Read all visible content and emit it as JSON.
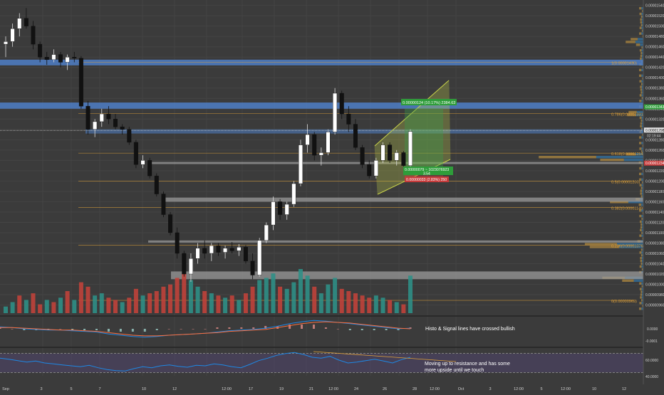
{
  "colors": {
    "background": "#3b3b3b",
    "candle_up": "#ffffff",
    "candle_down": "#111111",
    "volume_up": "#2f8f86",
    "volume_down": "#c0433b",
    "zone_blue": "#4f7fc7",
    "zone_gray": "#9a9a9a",
    "fib": "#e0a23a",
    "channel": "#c9d44a",
    "macd": "#1e88e5",
    "signal": "#ff6d3a",
    "rsi": "#1e88e5",
    "rsi_band": "#5b4a8a",
    "profile_up": "#d9a441",
    "profile_down": "#2f86c9"
  },
  "chart_data": [
    {
      "type": "candlestick",
      "title": "",
      "ylim": [
        9.47e-06,
        1.545e-05
      ],
      "price_axis": {
        "ticks": [
          "0.00001540",
          "0.00001520",
          "0.00001500",
          "0.00001480",
          "0.00001460",
          "0.00001440",
          "0.00001420",
          "0.00001400",
          "0.00001380",
          "0.00001360",
          "0.00001340",
          "0.00001320",
          "0.00001300",
          "0.00001280",
          "0.00001260",
          "0.00001240",
          "0.00001220",
          "0.00001200",
          "0.00001180",
          "0.00001160",
          "0.00001140",
          "0.00001120",
          "0.00001100",
          "0.00001080",
          "0.00001060",
          "0.00001040",
          "0.00001020",
          "0.00001000",
          "0.00000980",
          "0.00000960"
        ],
        "last_price": "0.00001298",
        "countdown": "02:19:44",
        "green_tag": "0.00001343",
        "red_tag": "0.00001234"
      },
      "time_axis": [
        "Sep",
        "3",
        "5",
        "7",
        "10",
        "12",
        "12:00",
        "17",
        "19",
        "21",
        "12:00",
        "24",
        "26",
        "28",
        "12:00",
        "Oct",
        "3",
        "12:00",
        "5",
        "12:00",
        "10",
        "12"
      ],
      "candles": [
        {
          "o": 1.465e-05,
          "h": 1.48e-05,
          "l": 1.44e-05,
          "c": 1.47e-05
        },
        {
          "o": 1.47e-05,
          "h": 1.505e-05,
          "l": 1.46e-05,
          "c": 1.495e-05
        },
        {
          "o": 1.495e-05,
          "h": 1.525e-05,
          "l": 1.48e-05,
          "c": 1.515e-05
        },
        {
          "o": 1.515e-05,
          "h": 1.535e-05,
          "l": 1.495e-05,
          "c": 1.5e-05
        },
        {
          "o": 1.5e-05,
          "h": 1.51e-05,
          "l": 1.455e-05,
          "c": 1.465e-05
        },
        {
          "o": 1.465e-05,
          "h": 1.47e-05,
          "l": 1.43e-05,
          "c": 1.44e-05
        },
        {
          "o": 1.44e-05,
          "h": 1.45e-05,
          "l": 1.425e-05,
          "c": 1.435e-05
        },
        {
          "o": 1.435e-05,
          "h": 1.455e-05,
          "l": 1.43e-05,
          "c": 1.445e-05
        },
        {
          "o": 1.445e-05,
          "h": 1.45e-05,
          "l": 1.42e-05,
          "c": 1.43e-05
        },
        {
          "o": 1.43e-05,
          "h": 1.445e-05,
          "l": 1.415e-05,
          "c": 1.44e-05
        },
        {
          "o": 1.44e-05,
          "h": 1.45e-05,
          "l": 1.43e-05,
          "c": 1.438e-05
        },
        {
          "o": 1.438e-05,
          "h": 1.442e-05,
          "l": 1.34e-05,
          "c": 1.345e-05
        },
        {
          "o": 1.345e-05,
          "h": 1.355e-05,
          "l": 1.29e-05,
          "c": 1.3e-05
        },
        {
          "o": 1.3e-05,
          "h": 1.32e-05,
          "l": 1.285e-05,
          "c": 1.315e-05
        },
        {
          "o": 1.315e-05,
          "h": 1.34e-05,
          "l": 1.305e-05,
          "c": 1.33e-05
        },
        {
          "o": 1.33e-05,
          "h": 1.345e-05,
          "l": 1.31e-05,
          "c": 1.32e-05
        },
        {
          "o": 1.32e-05,
          "h": 1.33e-05,
          "l": 1.3e-05,
          "c": 1.305e-05
        },
        {
          "o": 1.305e-05,
          "h": 1.31e-05,
          "l": 1.29e-05,
          "c": 1.3e-05
        },
        {
          "o": 1.3e-05,
          "h": 1.305e-05,
          "l": 1.27e-05,
          "c": 1.275e-05
        },
        {
          "o": 1.275e-05,
          "h": 1.28e-05,
          "l": 1.225e-05,
          "c": 1.232e-05
        },
        {
          "o": 1.232e-05,
          "h": 1.25e-05,
          "l": 1.225e-05,
          "c": 1.24e-05
        },
        {
          "o": 1.24e-05,
          "h": 1.245e-05,
          "l": 1.205e-05,
          "c": 1.21e-05
        },
        {
          "o": 1.21e-05,
          "h": 1.215e-05,
          "l": 1.17e-05,
          "c": 1.175e-05
        },
        {
          "o": 1.175e-05,
          "h": 1.18e-05,
          "l": 1.13e-05,
          "c": 1.135e-05
        },
        {
          "o": 1.135e-05,
          "h": 1.14e-05,
          "l": 1.095e-05,
          "c": 1.1e-05
        },
        {
          "o": 1.1e-05,
          "h": 1.11e-05,
          "l": 1.05e-05,
          "c": 1.06e-05
        },
        {
          "o": 1.06e-05,
          "h": 1.065e-05,
          "l": 1.015e-05,
          "c": 1.02e-05
        },
        {
          "o": 1.02e-05,
          "h": 1.06e-05,
          "l": 1.005e-05,
          "c": 1.05e-05
        },
        {
          "o": 1.05e-05,
          "h": 1.08e-05,
          "l": 1.04e-05,
          "c": 1.07e-05
        },
        {
          "o": 1.07e-05,
          "h": 1.085e-05,
          "l": 1.05e-05,
          "c": 1.06e-05
        },
        {
          "o": 1.06e-05,
          "h": 1.08e-05,
          "l": 1.045e-05,
          "c": 1.075e-05
        },
        {
          "o": 1.075e-05,
          "h": 1.08e-05,
          "l": 1.055e-05,
          "c": 1.062e-05
        },
        {
          "o": 1.062e-05,
          "h": 1.075e-05,
          "l": 1.05e-05,
          "c": 1.07e-05
        },
        {
          "o": 1.07e-05,
          "h": 1.082e-05,
          "l": 1.06e-05,
          "c": 1.065e-05
        },
        {
          "o": 1.065e-05,
          "h": 1.078e-05,
          "l": 1.055e-05,
          "c": 1.072e-05
        },
        {
          "o": 1.072e-05,
          "h": 1.076e-05,
          "l": 1.04e-05,
          "c": 1.045e-05
        },
        {
          "o": 1.045e-05,
          "h": 1.06e-05,
          "l": 1.01e-05,
          "c": 1.018e-05
        },
        {
          "o": 1.018e-05,
          "h": 1.09e-05,
          "l": 1.015e-05,
          "c": 1.085e-05
        },
        {
          "o": 1.085e-05,
          "h": 1.12e-05,
          "l": 1.08e-05,
          "c": 1.115e-05
        },
        {
          "o": 1.115e-05,
          "h": 1.17e-05,
          "l": 1.105e-05,
          "c": 1.16e-05
        },
        {
          "o": 1.16e-05,
          "h": 1.165e-05,
          "l": 1.125e-05,
          "c": 1.135e-05
        },
        {
          "o": 1.135e-05,
          "h": 1.16e-05,
          "l": 1.125e-05,
          "c": 1.155e-05
        },
        {
          "o": 1.155e-05,
          "h": 1.2e-05,
          "l": 1.15e-05,
          "c": 1.195e-05
        },
        {
          "o": 1.195e-05,
          "h": 1.28e-05,
          "l": 1.19e-05,
          "c": 1.27e-05
        },
        {
          "o": 1.27e-05,
          "h": 1.31e-05,
          "l": 1.255e-05,
          "c": 1.29e-05
        },
        {
          "o": 1.29e-05,
          "h": 1.295e-05,
          "l": 1.24e-05,
          "c": 1.25e-05
        },
        {
          "o": 1.25e-05,
          "h": 1.265e-05,
          "l": 1.23e-05,
          "c": 1.255e-05
        },
        {
          "o": 1.255e-05,
          "h": 1.3e-05,
          "l": 1.25e-05,
          "c": 1.295e-05
        },
        {
          "o": 1.295e-05,
          "h": 1.38e-05,
          "l": 1.29e-05,
          "c": 1.37e-05
        },
        {
          "o": 1.37e-05,
          "h": 1.375e-05,
          "l": 1.32e-05,
          "c": 1.33e-05
        },
        {
          "o": 1.33e-05,
          "h": 1.345e-05,
          "l": 1.295e-05,
          "c": 1.31e-05
        },
        {
          "o": 1.31e-05,
          "h": 1.32e-05,
          "l": 1.26e-05,
          "c": 1.265e-05
        },
        {
          "o": 1.265e-05,
          "h": 1.27e-05,
          "l": 1.225e-05,
          "c": 1.232e-05
        },
        {
          "o": 1.232e-05,
          "h": 1.24e-05,
          "l": 1.205e-05,
          "c": 1.21e-05
        },
        {
          "o": 1.21e-05,
          "h": 1.245e-05,
          "l": 1.205e-05,
          "c": 1.24e-05
        },
        {
          "o": 1.24e-05,
          "h": 1.275e-05,
          "l": 1.235e-05,
          "c": 1.27e-05
        },
        {
          "o": 1.27e-05,
          "h": 1.275e-05,
          "l": 1.235e-05,
          "c": 1.24e-05
        },
        {
          "o": 1.24e-05,
          "h": 1.26e-05,
          "l": 1.23e-05,
          "c": 1.255e-05
        },
        {
          "o": 1.255e-05,
          "h": 1.258e-05,
          "l": 1.225e-05,
          "c": 1.23e-05
        },
        {
          "o": 1.23e-05,
          "h": 1.3e-05,
          "l": 1.228e-05,
          "c": 1.296e-05
        }
      ],
      "volume": [
        {
          "v": 3,
          "up": true
        },
        {
          "v": 5,
          "up": true
        },
        {
          "v": 8,
          "up": false
        },
        {
          "v": 6,
          "up": true
        },
        {
          "v": 9,
          "up": false
        },
        {
          "v": 4,
          "up": false
        },
        {
          "v": 6,
          "up": true
        },
        {
          "v": 5,
          "up": false
        },
        {
          "v": 7,
          "up": true
        },
        {
          "v": 10,
          "up": false
        },
        {
          "v": 6,
          "up": true
        },
        {
          "v": 14,
          "up": false
        },
        {
          "v": 12,
          "up": false
        },
        {
          "v": 8,
          "up": true
        },
        {
          "v": 9,
          "up": true
        },
        {
          "v": 7,
          "up": false
        },
        {
          "v": 6,
          "up": false
        },
        {
          "v": 5,
          "up": true
        },
        {
          "v": 7,
          "up": false
        },
        {
          "v": 11,
          "up": false
        },
        {
          "v": 8,
          "up": true
        },
        {
          "v": 9,
          "up": false
        },
        {
          "v": 10,
          "up": false
        },
        {
          "v": 12,
          "up": false
        },
        {
          "v": 13,
          "up": false
        },
        {
          "v": 16,
          "up": false
        },
        {
          "v": 18,
          "up": false
        },
        {
          "v": 15,
          "up": true
        },
        {
          "v": 12,
          "up": true
        },
        {
          "v": 10,
          "up": false
        },
        {
          "v": 9,
          "up": true
        },
        {
          "v": 8,
          "up": false
        },
        {
          "v": 7,
          "up": true
        },
        {
          "v": 8,
          "up": false
        },
        {
          "v": 6,
          "up": true
        },
        {
          "v": 9,
          "up": false
        },
        {
          "v": 12,
          "up": false
        },
        {
          "v": 15,
          "up": true
        },
        {
          "v": 16,
          "up": true
        },
        {
          "v": 18,
          "up": true
        },
        {
          "v": 12,
          "up": false
        },
        {
          "v": 11,
          "up": true
        },
        {
          "v": 14,
          "up": true
        },
        {
          "v": 20,
          "up": true
        },
        {
          "v": 17,
          "up": true
        },
        {
          "v": 12,
          "up": false
        },
        {
          "v": 9,
          "up": true
        },
        {
          "v": 13,
          "up": true
        },
        {
          "v": 16,
          "up": true
        },
        {
          "v": 11,
          "up": false
        },
        {
          "v": 10,
          "up": false
        },
        {
          "v": 9,
          "up": false
        },
        {
          "v": 8,
          "up": false
        },
        {
          "v": 7,
          "up": false
        },
        {
          "v": 8,
          "up": true
        },
        {
          "v": 7,
          "up": true
        },
        {
          "v": 6,
          "up": false
        },
        {
          "v": 5,
          "up": true
        },
        {
          "v": 4,
          "up": false
        },
        {
          "v": 17,
          "up": true
        }
      ],
      "zones_blue": [
        {
          "low": 1.424e-05,
          "high": 1.435e-05
        },
        {
          "low": 1.34e-05,
          "high": 1.352e-05
        },
        {
          "low": 1.292e-05,
          "high": 1.3e-05
        }
      ],
      "zones_gray": [
        {
          "low": 1.233e-05,
          "high": 1.237e-05
        },
        {
          "low": 1.16e-05,
          "high": 1.168e-05
        },
        {
          "low": 1.082e-05,
          "high": 1.085e-05
        },
        {
          "low": 1.01e-05,
          "high": 1.025e-05
        }
      ],
      "fib_levels": [
        {
          "price": 1.43e-05,
          "label": "1(0.00001430)"
        },
        {
          "price": 1.331e-05,
          "label": "0.786(0.00001331)"
        },
        {
          "price": 1.254e-05,
          "label": "0.618(0.00001254)"
        },
        {
          "price": 1.2e-05,
          "label": "0.5(0.00001200)"
        },
        {
          "price": 1.149e-05,
          "label": "0.382(0.00001149)"
        },
        {
          "price": 1.076e-05,
          "label": "0.236(0.00001076)"
        },
        {
          "price": 9.69e-06,
          "label": "0(0.00000969)"
        }
      ],
      "measure_up": "0.00000124 (10.17%) 2384.63",
      "measure_mid": "0.00000079 ~ 1023076923",
      "measure_mid2": "3.54",
      "measure_down": "0.00000033 (2.83%) 250"
    },
    {
      "type": "line",
      "indicator": "MACD",
      "ylim": [
        -2e-05,
        2e-05
      ],
      "ticks": [
        "0.0000",
        "-0.0001"
      ],
      "macd": [
        0.3,
        0.2,
        0.0,
        -0.1,
        -0.2,
        -0.2,
        -0.3,
        -0.4,
        -0.5,
        -0.8,
        -1.0,
        -1.2,
        -1.3,
        -1.2,
        -1.0,
        -0.9,
        -0.8,
        -0.7,
        -0.5,
        -0.3,
        -0.2,
        -0.1,
        0.1,
        0.4,
        0.8,
        1.1,
        1.3,
        1.2,
        1.0,
        0.8,
        0.6,
        0.4,
        0.2,
        0.0,
        0.1
      ],
      "signal": [
        0.2,
        0.2,
        0.1,
        0.0,
        -0.1,
        -0.2,
        -0.2,
        -0.3,
        -0.4,
        -0.6,
        -0.8,
        -1.0,
        -1.1,
        -1.1,
        -1.0,
        -0.9,
        -0.8,
        -0.7,
        -0.6,
        -0.4,
        -0.3,
        -0.2,
        -0.1,
        0.2,
        0.5,
        0.8,
        1.0,
        1.1,
        1.0,
        0.9,
        0.7,
        0.5,
        0.3,
        0.1,
        0.0
      ],
      "annotation": "Histo & Signal lines have crossed bullish"
    },
    {
      "type": "line",
      "indicator": "RSI",
      "ylim": [
        20,
        80
      ],
      "ticks": [
        "60.0000",
        "40.0000"
      ],
      "band": [
        30,
        70
      ],
      "values": [
        60,
        58,
        55,
        52,
        54,
        50,
        48,
        46,
        44,
        42,
        45,
        40,
        36,
        34,
        33,
        38,
        42,
        40,
        44,
        46,
        43,
        41,
        45,
        44,
        48,
        46,
        42,
        40,
        47,
        55,
        60,
        66,
        70,
        72,
        68,
        62,
        60,
        64,
        56,
        50,
        52,
        55,
        58,
        54,
        50,
        57,
        62
      ],
      "annotation_line1": "Moving up to resistance and has some",
      "annotation_line2": "more upside until we touch"
    }
  ]
}
